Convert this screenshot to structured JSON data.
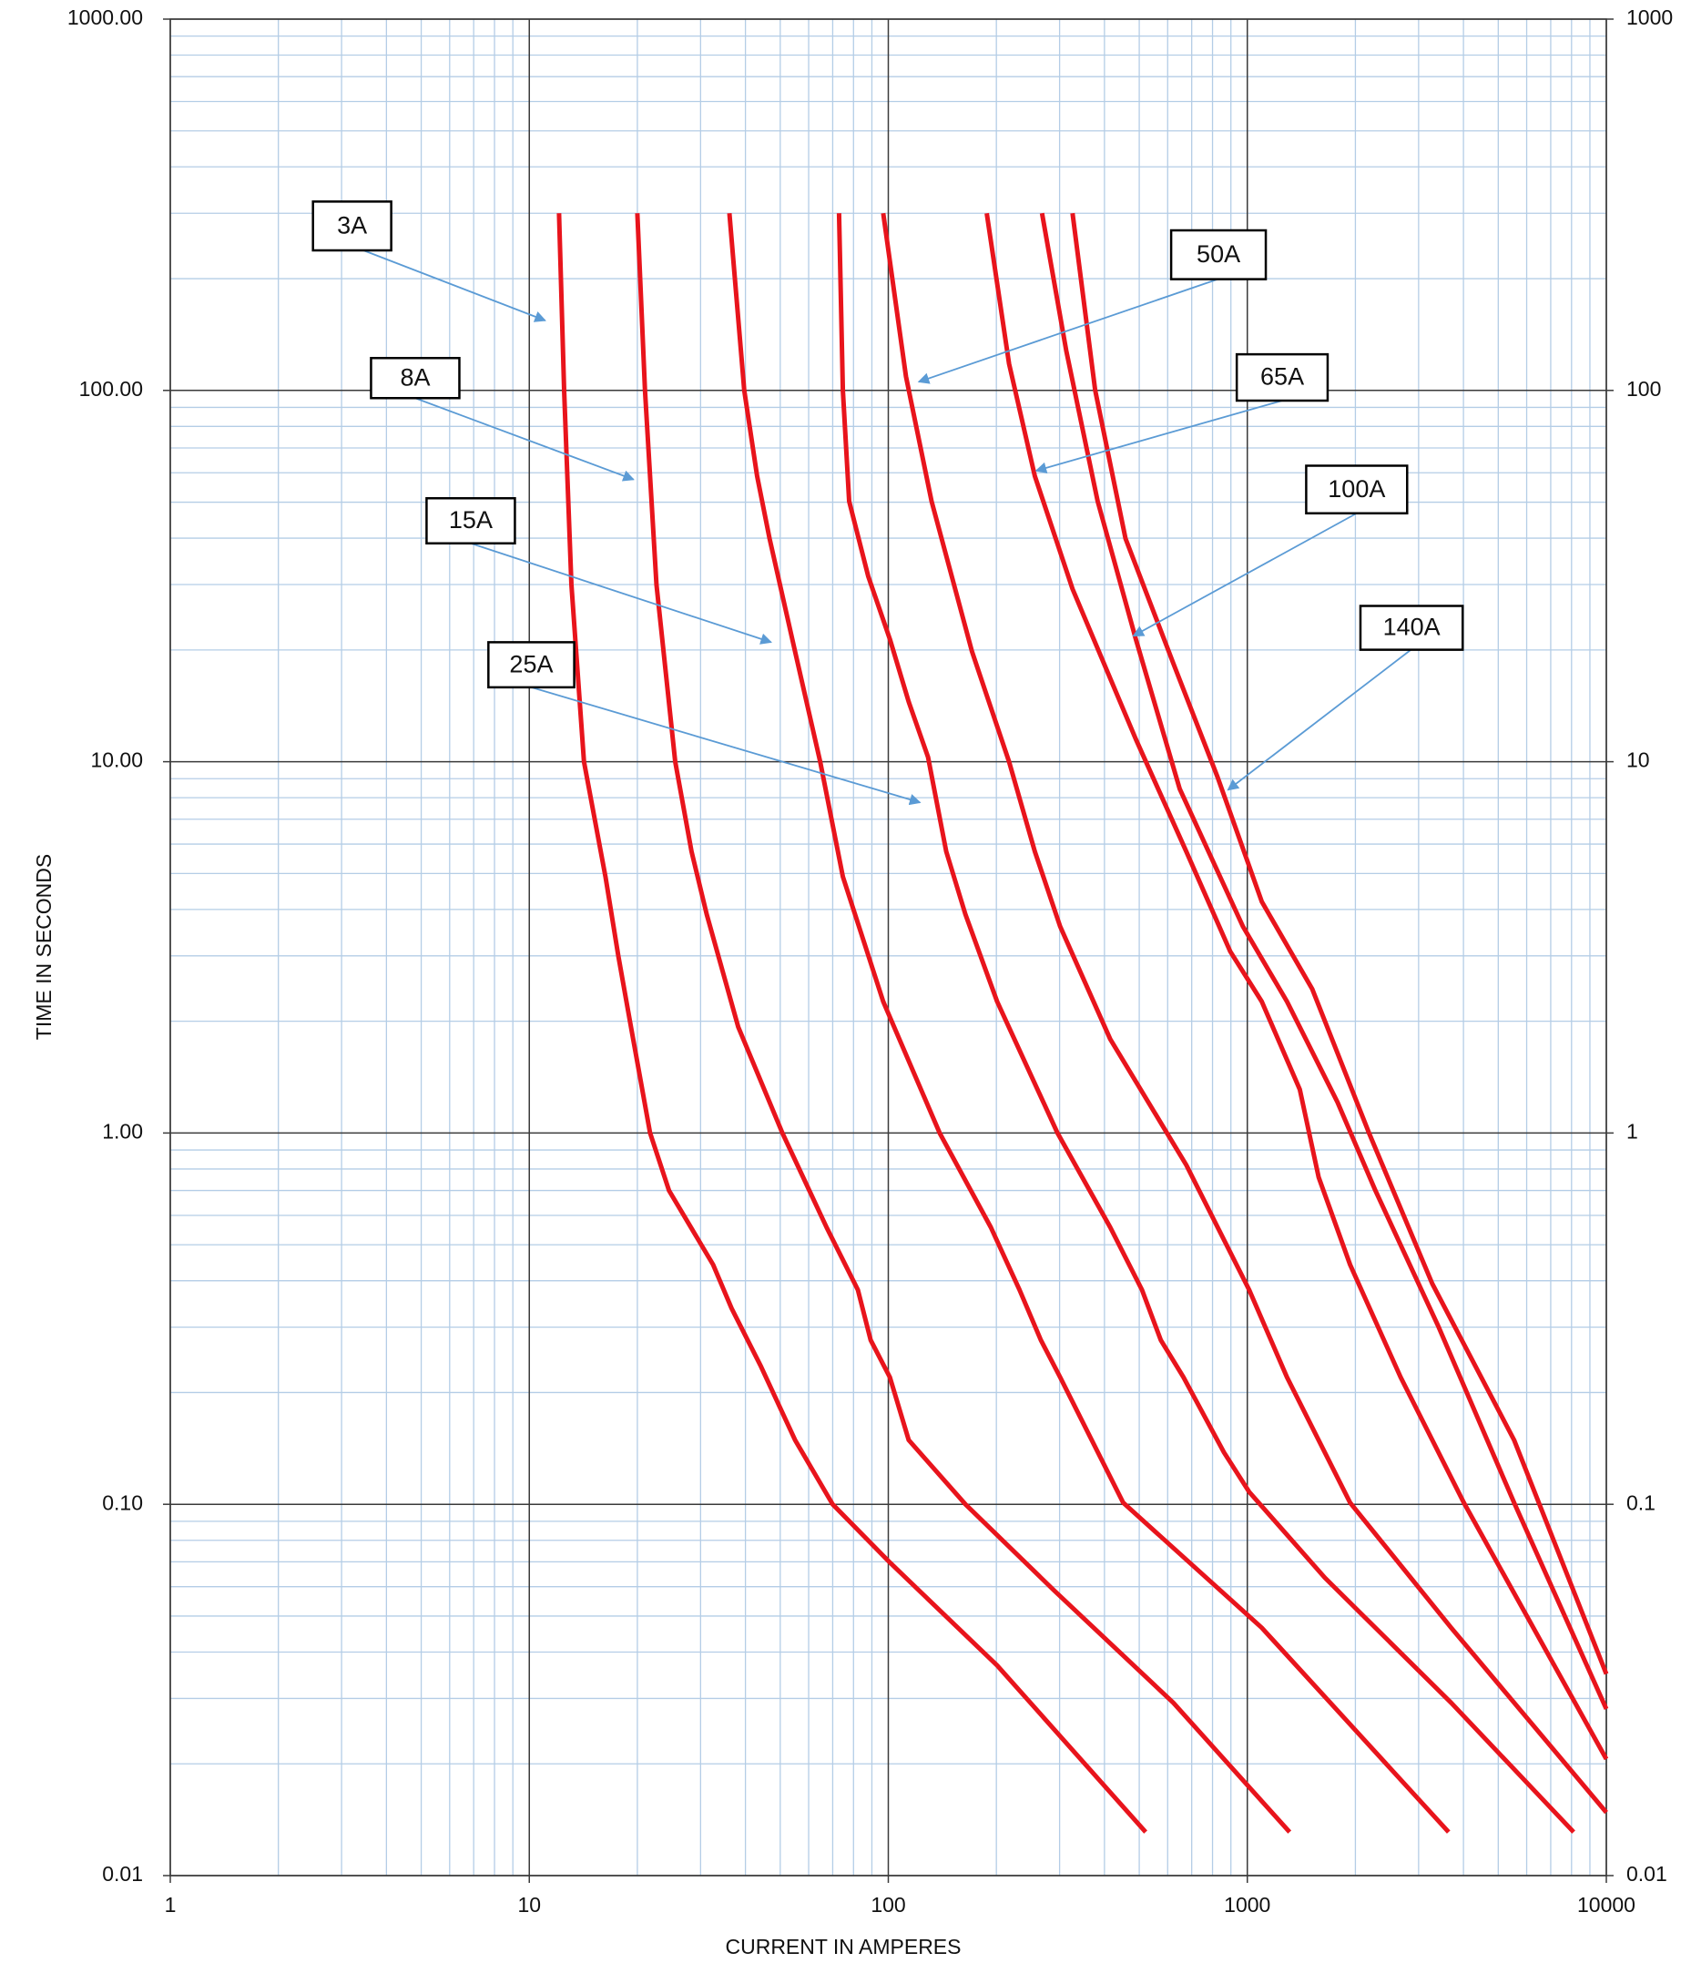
{
  "chart_data": {
    "type": "line",
    "xlabel": "CURRENT IN AMPERES",
    "ylabel": "TIME IN SECONDS",
    "xscale": "log",
    "yscale": "log",
    "grid": true,
    "minor_grid": true,
    "xlim": [
      1,
      10000
    ],
    "xticks": [
      1,
      10,
      100,
      1000,
      10000
    ],
    "ylim": [
      0.01,
      1000
    ],
    "yticks": [
      {
        "value": 1000,
        "label": "1000.00"
      },
      {
        "value": 100,
        "label": "100.00"
      },
      {
        "value": 10,
        "label": "10.00"
      },
      {
        "value": 1,
        "label": "1.00"
      },
      {
        "value": 0.1,
        "label": "0.10"
      },
      {
        "value": 0.01,
        "label": "0.01"
      }
    ],
    "y2lim": [
      0.01,
      1000
    ],
    "y2ticks": [
      1000,
      100,
      10,
      1,
      0.1,
      0.01
    ],
    "series": [
      {
        "name": "3A",
        "color": "#e8141c",
        "x": [
          12.1,
          12.5,
          13.1,
          14.2,
          16.3,
          17.7,
          19.2,
          21.7,
          24.5,
          32.5,
          36.6,
          44.2,
          55.0,
          70,
          101,
          201,
          521
        ],
        "values": [
          300,
          100,
          30,
          10,
          4.9,
          3,
          1.93,
          1,
          0.7,
          0.442,
          0.337,
          0.235,
          0.149,
          0.1,
          0.0697,
          0.0368,
          0.0131
        ]
      },
      {
        "name": "8A",
        "color": "#e8141c",
        "x": [
          20.0,
          21.0,
          22.6,
          25.5,
          28.3,
          31.2,
          38.2,
          50.7,
          67.3,
          82.3,
          89.3,
          101,
          114,
          164,
          289,
          622,
          1312
        ],
        "values": [
          300,
          100,
          30,
          10,
          5.73,
          3.88,
          1.93,
          1,
          0.557,
          0.378,
          0.277,
          0.22,
          0.149,
          0.1,
          0.0587,
          0.0292,
          0.0131
        ]
      },
      {
        "name": "15A",
        "color": "#e8141c",
        "x": [
          36.1,
          39.7,
          43.1,
          46.7,
          55.0,
          64.6,
          74.7,
          96.8,
          139,
          193,
          232,
          266,
          301,
          451,
          1097,
          3637
        ],
        "values": [
          300,
          100,
          58.8,
          39.9,
          19.8,
          10,
          4.9,
          2.26,
          1,
          0.557,
          0.378,
          0.277,
          0.22,
          0.101,
          0.0465,
          0.0131
        ]
      },
      {
        "name": "25A",
        "color": "#e8141c",
        "x": [
          72.9,
          74.7,
          77.8,
          87.9,
          101,
          114,
          129,
          145,
          164,
          201,
          296,
          415,
          509,
          574,
          664,
          861,
          1012,
          1644,
          3697,
          8110
        ],
        "values": [
          300,
          100,
          50.3,
          31.6,
          21.4,
          14.5,
          10.3,
          5.73,
          3.88,
          2.26,
          1,
          0.557,
          0.378,
          0.277,
          0.22,
          0.138,
          0.108,
          0.0634,
          0.0292,
          0.0131
        ]
      },
      {
        "name": "50A",
        "color": "#e8141c",
        "x": [
          96.8,
          112,
          132,
          171,
          217,
          256,
          301,
          415,
          676,
          1012,
          1290,
          1933,
          3697,
          10000
        ],
        "values": [
          300,
          109,
          50.3,
          19.8,
          10,
          5.73,
          3.6,
          1.79,
          0.82,
          0.378,
          0.22,
          0.101,
          0.0465,
          0.0148
        ]
      },
      {
        "name": "65A",
        "color": "#e8141c",
        "x": [
          188,
          217,
          256,
          326,
          489,
          676,
          897,
          1097,
          1400,
          1580,
          1933,
          2673,
          4009,
          10000
        ],
        "values": [
          300,
          118,
          58.8,
          29.2,
          11.5,
          5.73,
          3.08,
          2.26,
          1.31,
          0.76,
          0.442,
          0.22,
          0.101,
          0.0206
        ]
      },
      {
        "name": "100A",
        "color": "#e8141c",
        "x": [
          268,
          313,
          383,
          489,
          648,
          972,
          1290,
          1783,
          2274,
          3412,
          5534,
          10000
        ],
        "values": [
          300,
          128,
          50.3,
          21.4,
          8.45,
          3.6,
          2.26,
          1.21,
          0.7,
          0.3,
          0.101,
          0.0281
        ]
      },
      {
        "name": "140A",
        "color": "#e8141c",
        "x": [
          326,
          377,
          458,
          622,
          826,
          1097,
          1517,
          2183,
          3273,
          5534,
          10000
        ],
        "values": [
          300,
          100,
          39.9,
          18.4,
          9.1,
          4.2,
          2.44,
          1,
          0.393,
          0.149,
          0.0349
        ]
      }
    ]
  }
}
